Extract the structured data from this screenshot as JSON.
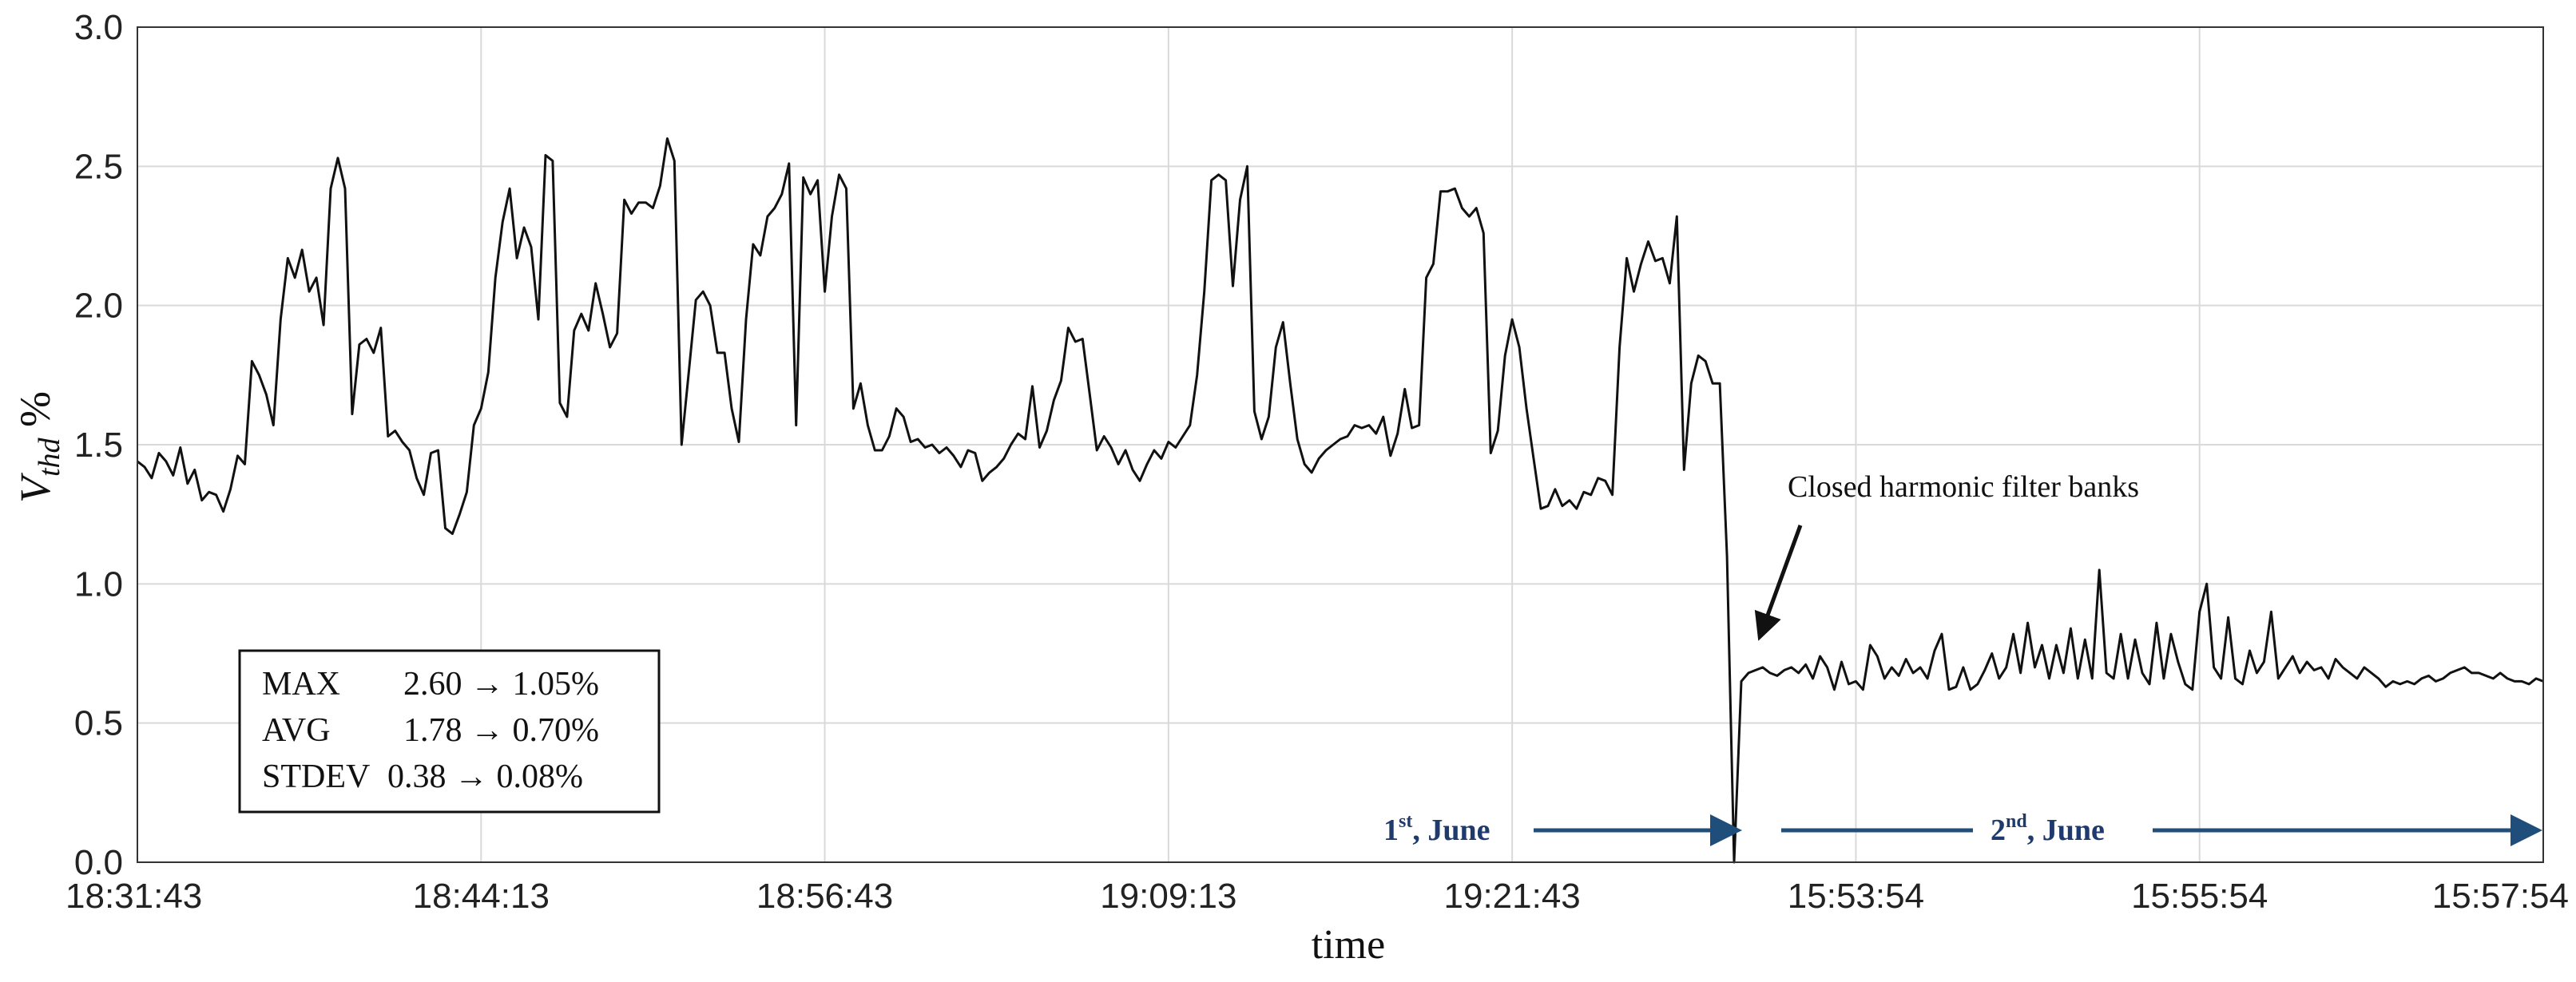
{
  "chart_data": {
    "type": "line",
    "xlabel": "time",
    "ylabel": {
      "main": "V",
      "sub": "thd",
      "unit": " %"
    },
    "ylim": [
      0,
      3.0
    ],
    "y_ticks": [
      "0.0",
      "0.5",
      "1.0",
      "1.5",
      "2.0",
      "2.5",
      "3.0"
    ],
    "x_ticks": [
      "18:31:43",
      "18:44:13",
      "18:56:43",
      "19:09:13",
      "19:21:43",
      "15:53:54",
      "15:55:54",
      "15:57:54"
    ],
    "grid": true,
    "series": [
      {
        "values": [
          1.44,
          1.42,
          1.38,
          1.47,
          1.44,
          1.39,
          1.49,
          1.36,
          1.41,
          1.3,
          1.33,
          1.32,
          1.26,
          1.34,
          1.46,
          1.43,
          1.8,
          1.75,
          1.68,
          1.57,
          1.95,
          2.17,
          2.1,
          2.2,
          2.05,
          2.1,
          1.93,
          2.42,
          2.53,
          2.42,
          1.61,
          1.86,
          1.88,
          1.83,
          1.92,
          1.53,
          1.55,
          1.51,
          1.48,
          1.38,
          1.32,
          1.47,
          1.48,
          1.2,
          1.18,
          1.25,
          1.33,
          1.57,
          1.63,
          1.76,
          2.1,
          2.3,
          2.42,
          2.17,
          2.28,
          2.21,
          1.95,
          2.54,
          2.52,
          1.65,
          1.6,
          1.91,
          1.97,
          1.91,
          2.08,
          1.97,
          1.85,
          1.9,
          2.38,
          2.33,
          2.37,
          2.37,
          2.35,
          2.43,
          2.6,
          2.52,
          1.5,
          1.76,
          2.02,
          2.05,
          2.0,
          1.83,
          1.83,
          1.63,
          1.51,
          1.95,
          2.22,
          2.18,
          2.32,
          2.35,
          2.4,
          2.51,
          1.57,
          2.46,
          2.4,
          2.45,
          2.05,
          2.32,
          2.47,
          2.42,
          1.63,
          1.72,
          1.57,
          1.48,
          1.48,
          1.53,
          1.63,
          1.6,
          1.51,
          1.52,
          1.49,
          1.5,
          1.47,
          1.49,
          1.46,
          1.42,
          1.48,
          1.47,
          1.37,
          1.4,
          1.42,
          1.45,
          1.5,
          1.54,
          1.52,
          1.71,
          1.49,
          1.55,
          1.66,
          1.73,
          1.92,
          1.87,
          1.88,
          1.68,
          1.48,
          1.53,
          1.49,
          1.43,
          1.48,
          1.41,
          1.37,
          1.43,
          1.48,
          1.45,
          1.51,
          1.49,
          1.53,
          1.57,
          1.75,
          2.05,
          2.45,
          2.47,
          2.45,
          2.07,
          2.38,
          2.5,
          1.62,
          1.52,
          1.6,
          1.85,
          1.94,
          1.72,
          1.52,
          1.43,
          1.4,
          1.45,
          1.48,
          1.5,
          1.52,
          1.53,
          1.57,
          1.56,
          1.57,
          1.54,
          1.6,
          1.46,
          1.54,
          1.7,
          1.56,
          1.57,
          2.1,
          2.15,
          2.41,
          2.41,
          2.42,
          2.35,
          2.32,
          2.35,
          2.26,
          1.47,
          1.55,
          1.82,
          1.95,
          1.85,
          1.63,
          1.45,
          1.27,
          1.28,
          1.34,
          1.28,
          1.3,
          1.27,
          1.33,
          1.32,
          1.38,
          1.37,
          1.32,
          1.85,
          2.17,
          2.05,
          2.15,
          2.23,
          2.16,
          2.17,
          2.08,
          2.32,
          1.41,
          1.72,
          1.82,
          1.8,
          1.72,
          1.72,
          1.1,
          0.0,
          0.65,
          0.68,
          0.69,
          0.7,
          0.68,
          0.67,
          0.69,
          0.7,
          0.68,
          0.71,
          0.66,
          0.74,
          0.7,
          0.62,
          0.72,
          0.64,
          0.65,
          0.62,
          0.78,
          0.74,
          0.66,
          0.7,
          0.67,
          0.73,
          0.68,
          0.7,
          0.66,
          0.76,
          0.82,
          0.62,
          0.63,
          0.7,
          0.62,
          0.64,
          0.69,
          0.75,
          0.66,
          0.7,
          0.82,
          0.68,
          0.86,
          0.7,
          0.78,
          0.66,
          0.78,
          0.68,
          0.84,
          0.66,
          0.8,
          0.66,
          1.05,
          0.68,
          0.66,
          0.82,
          0.66,
          0.8,
          0.68,
          0.64,
          0.86,
          0.66,
          0.82,
          0.72,
          0.64,
          0.62,
          0.9,
          1.0,
          0.7,
          0.66,
          0.88,
          0.66,
          0.64,
          0.76,
          0.68,
          0.72,
          0.9,
          0.66,
          0.7,
          0.74,
          0.68,
          0.72,
          0.69,
          0.7,
          0.66,
          0.73,
          0.7,
          0.68,
          0.66,
          0.7,
          0.68,
          0.66,
          0.63,
          0.65,
          0.64,
          0.65,
          0.64,
          0.66,
          0.67,
          0.65,
          0.66,
          0.68,
          0.69,
          0.7,
          0.68,
          0.68,
          0.67,
          0.66,
          0.68,
          0.66,
          0.65,
          0.65,
          0.64,
          0.66,
          0.65
        ]
      }
    ],
    "stats_box": [
      {
        "label": "MAX",
        "value": "2.60 → 1.05%"
      },
      {
        "label": "AVG",
        "value": "1.78 → 0.70%"
      },
      {
        "label": "STDEV",
        "value": "0.38 → 0.08%"
      }
    ],
    "annotation": "Closed harmonic filter banks",
    "day_labels": [
      {
        "num": "1",
        "sup": "st",
        "rest": ", June"
      },
      {
        "num": "2",
        "sup": "nd",
        "rest": ", June"
      }
    ],
    "colors": {
      "line": "#111111",
      "grid": "#d9d9d9",
      "arrow_day": "#1f4e7a",
      "day_text": "#1f3a6d"
    }
  }
}
